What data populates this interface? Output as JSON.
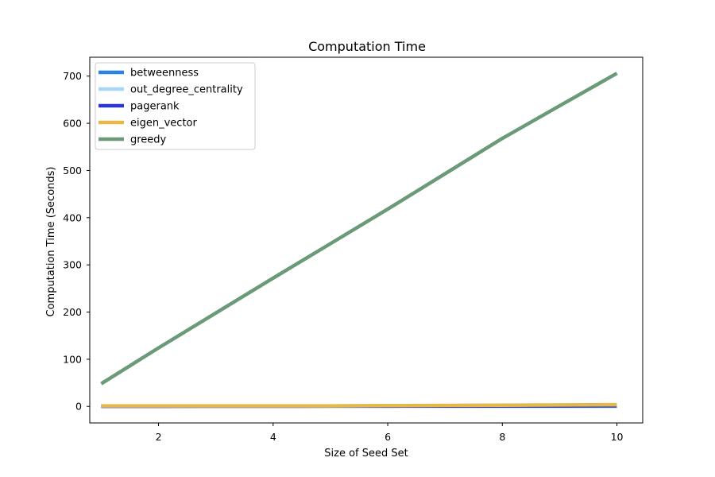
{
  "chart_data": {
    "type": "line",
    "title": "Computation Time",
    "xlabel": "Size of Seed Set",
    "ylabel": "Computation Time (Seconds)",
    "xlim": [
      0.8,
      10.45
    ],
    "ylim": [
      -35,
      740
    ],
    "xticks": [
      2,
      4,
      6,
      8,
      10
    ],
    "yticks": [
      0,
      100,
      200,
      300,
      400,
      500,
      600,
      700
    ],
    "x": [
      1,
      2,
      3,
      4,
      5,
      6,
      7,
      8,
      9,
      10
    ],
    "legend_position": "top-left",
    "grid": false,
    "series": [
      {
        "name": "betweenness",
        "color": "#2a84e8",
        "values": [
          0.5,
          0.6,
          0.7,
          0.8,
          0.9,
          1.0,
          1.1,
          1.2,
          1.3,
          1.4
        ]
      },
      {
        "name": "out_degree_centrality",
        "color": "#a6d8f5",
        "values": [
          0.1,
          0.1,
          0.1,
          0.1,
          0.1,
          0.1,
          0.2,
          0.2,
          0.2,
          0.2
        ]
      },
      {
        "name": "pagerank",
        "color": "#2a37d8",
        "values": [
          0.3,
          0.4,
          0.5,
          0.6,
          0.7,
          0.8,
          0.9,
          1.0,
          1.1,
          1.2
        ]
      },
      {
        "name": "eigen_vector",
        "color": "#e6b84a",
        "values": [
          1,
          1,
          1,
          1,
          1,
          1.5,
          2,
          2.5,
          3,
          3.5
        ]
      },
      {
        "name": "greedy",
        "color": "#6b9a78",
        "values": [
          48,
          124,
          198,
          272,
          345,
          418,
          493,
          568,
          637,
          706
        ]
      }
    ]
  }
}
